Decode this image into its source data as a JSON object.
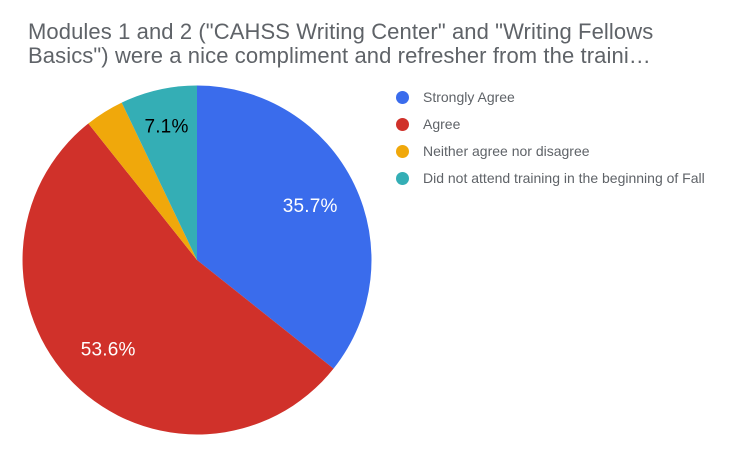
{
  "chart_data": {
    "type": "pie",
    "title": "Modules 1 and 2 (\"CAHSS Writing Center\" and \"Writing Fellows Basics\") were a nice compliment and refresher from the traini…",
    "title_lines": [
      "Modules 1 and 2 (\"CAHSS Writing Center\" and \"Writing Fellows",
      "Basics\") were a nice compliment and refresher from the traini…"
    ],
    "legend_position": "right",
    "start_angle_deg": 0,
    "direction": "clockwise",
    "total": 100,
    "slices": [
      {
        "label": "Strongly Agree",
        "value": 35.7,
        "color": "#3a6cec",
        "pct_label": "35.7%",
        "pct_label_color": "#ffffff"
      },
      {
        "label": "Agree",
        "value": 53.6,
        "color": "#d0312a",
        "pct_label": "53.6%",
        "pct_label_color": "#ffffff"
      },
      {
        "label": "Neither agree nor disagree",
        "value": 3.6,
        "color": "#f0a80b",
        "pct_label": null,
        "pct_label_color": null
      },
      {
        "label": "Did not attend training in the beginning of Fall",
        "value": 7.1,
        "color": "#34aeb5",
        "pct_label": "7.1%",
        "pct_label_color": "#000000"
      }
    ]
  },
  "colors": {
    "background": "#ffffff",
    "title_text": "#5f6368",
    "legend_text": "#5f6368"
  }
}
